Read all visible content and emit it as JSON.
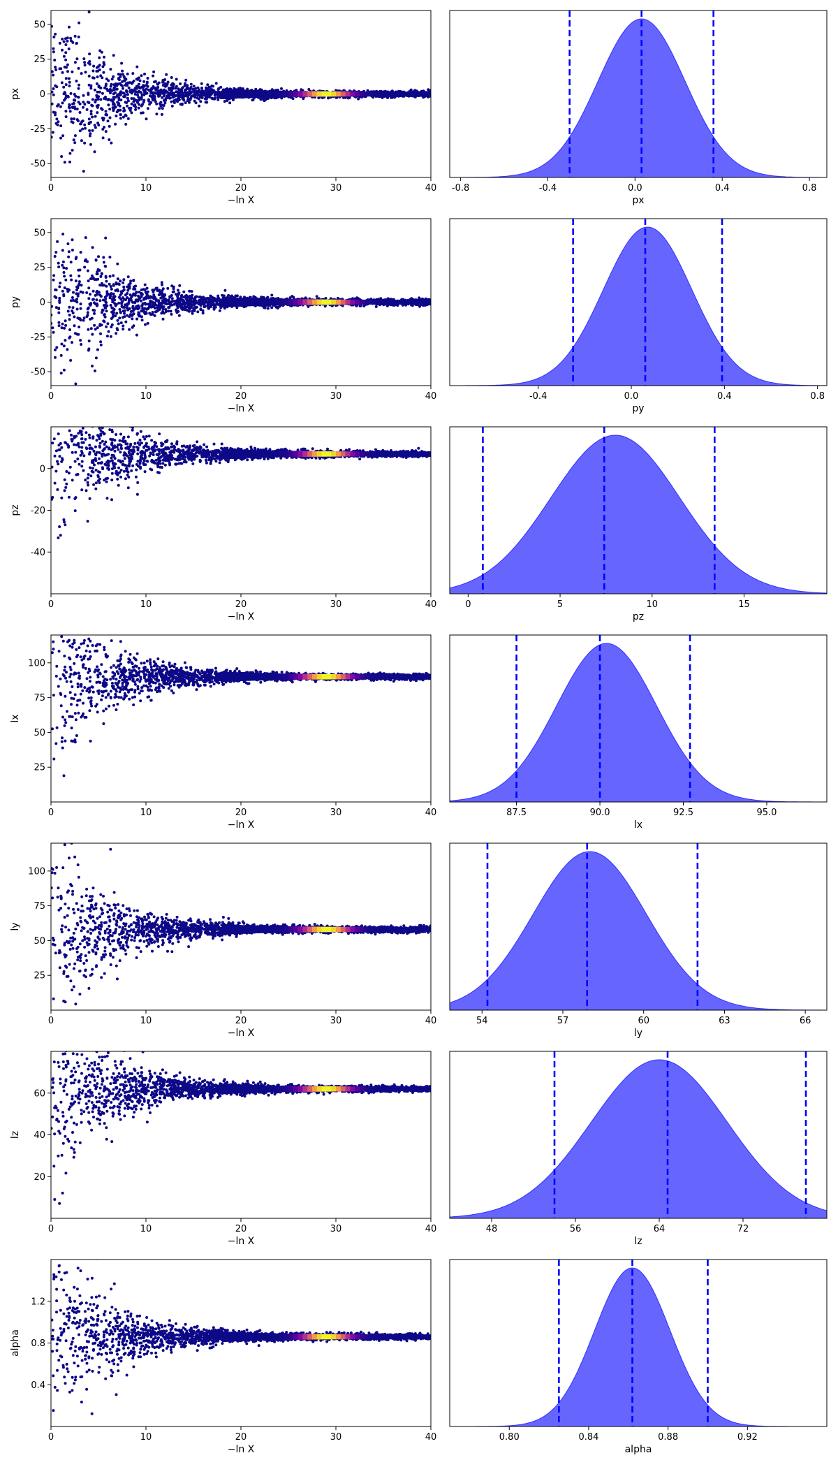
{
  "colors": {
    "scatter_low": "#0d0887",
    "scatter_mid": "#cc4778",
    "scatter_high": "#f0f921",
    "posterior_fill": "#0000ff",
    "posterior_line": "#0000ff",
    "axes": "#000000"
  },
  "chart_data": [
    {
      "type": "scatter",
      "panel": "trace-px",
      "xlabel": "−ln X",
      "ylabel": "px",
      "xlim": [
        0,
        40
      ],
      "ylim": [
        -60,
        60
      ],
      "xticks": [
        "0",
        "10",
        "20",
        "30",
        "40"
      ],
      "yticks": [
        "-50",
        "-25",
        "0",
        "25",
        "50"
      ],
      "converged_value": 0,
      "colormap": "plasma",
      "highlight_x": 29
    },
    {
      "type": "area",
      "panel": "post-px",
      "xlabel": "px",
      "xlim": [
        -0.85,
        0.88
      ],
      "xticks": [
        "-0.8",
        "-0.4",
        "0.0",
        "0.4",
        "0.8"
      ],
      "mode": 0.03,
      "sigma": 0.2,
      "quantiles": [
        -0.3,
        0.03,
        0.36
      ]
    },
    {
      "type": "scatter",
      "panel": "trace-py",
      "xlabel": "−ln X",
      "ylabel": "py",
      "xlim": [
        0,
        40
      ],
      "ylim": [
        -60,
        60
      ],
      "xticks": [
        "0",
        "10",
        "20",
        "30",
        "40"
      ],
      "yticks": [
        "-50",
        "-25",
        "0",
        "25",
        "50"
      ],
      "converged_value": 0,
      "colormap": "plasma",
      "highlight_x": 29
    },
    {
      "type": "area",
      "panel": "post-py",
      "xlabel": "py",
      "xlim": [
        -0.78,
        0.84
      ],
      "xticks": [
        "-0.4",
        "0.0",
        "0.4",
        "0.8"
      ],
      "mode": 0.07,
      "sigma": 0.19,
      "quantiles": [
        -0.25,
        0.06,
        0.39
      ]
    },
    {
      "type": "scatter",
      "panel": "trace-pz",
      "xlabel": "−ln X",
      "ylabel": "pz",
      "xlim": [
        0,
        40
      ],
      "ylim": [
        -60,
        20
      ],
      "xticks": [
        "0",
        "10",
        "20",
        "30",
        "40"
      ],
      "yticks": [
        "-40",
        "-20",
        "0"
      ],
      "converged_value": 7,
      "colormap": "plasma",
      "highlight_x": 29
    },
    {
      "type": "area",
      "panel": "post-pz",
      "xlabel": "pz",
      "xlim": [
        -1,
        19.5
      ],
      "xticks": [
        "0",
        "5",
        "10",
        "15"
      ],
      "mode": 8,
      "sigma": 3.5,
      "quantiles": [
        0.8,
        7.4,
        13.4
      ]
    },
    {
      "type": "scatter",
      "panel": "trace-lx",
      "xlabel": "−ln X",
      "ylabel": "lx",
      "xlim": [
        0,
        40
      ],
      "ylim": [
        0,
        120
      ],
      "xticks": [
        "0",
        "10",
        "20",
        "30",
        "40"
      ],
      "yticks": [
        "25",
        "50",
        "75",
        "100"
      ],
      "converged_value": 90,
      "colormap": "plasma",
      "highlight_x": 29
    },
    {
      "type": "area",
      "panel": "post-lx",
      "xlabel": "lx",
      "xlim": [
        85.5,
        96.8
      ],
      "xticks": [
        "87.5",
        "90.0",
        "92.5",
        "95.0"
      ],
      "mode": 90.2,
      "sigma": 1.5,
      "quantiles": [
        87.5,
        90.0,
        92.7
      ]
    },
    {
      "type": "scatter",
      "panel": "trace-ly",
      "xlabel": "−ln X",
      "ylabel": "ly",
      "xlim": [
        0,
        40
      ],
      "ylim": [
        0,
        120
      ],
      "xticks": [
        "0",
        "10",
        "20",
        "30",
        "40"
      ],
      "yticks": [
        "25",
        "50",
        "75",
        "100"
      ],
      "converged_value": 58,
      "colormap": "plasma",
      "highlight_x": 29
    },
    {
      "type": "area",
      "panel": "post-ly",
      "xlabel": "ly",
      "xlim": [
        52.8,
        66.8
      ],
      "xticks": [
        "54",
        "57",
        "60",
        "63",
        "66"
      ],
      "mode": 58,
      "sigma": 2.1,
      "quantiles": [
        54.2,
        57.9,
        62.0
      ]
    },
    {
      "type": "scatter",
      "panel": "trace-lz",
      "xlabel": "−ln X",
      "ylabel": "lz",
      "xlim": [
        0,
        40
      ],
      "ylim": [
        0,
        80
      ],
      "xticks": [
        "0",
        "10",
        "20",
        "30",
        "40"
      ],
      "yticks": [
        "20",
        "40",
        "60"
      ],
      "converged_value": 62,
      "colormap": "plasma",
      "highlight_x": 29
    },
    {
      "type": "area",
      "panel": "post-lz",
      "xlabel": "lz",
      "xlim": [
        44,
        80
      ],
      "xticks": [
        "48",
        "56",
        "64",
        "72"
      ],
      "mode": 64,
      "sigma": 6.5,
      "quantiles": [
        54,
        64.8,
        78
      ]
    },
    {
      "type": "scatter",
      "panel": "trace-alpha",
      "xlabel": "−ln X",
      "ylabel": "alpha",
      "xlim": [
        0,
        40
      ],
      "ylim": [
        0,
        1.6
      ],
      "xticks": [
        "0",
        "10",
        "20",
        "30",
        "40"
      ],
      "yticks": [
        "0.4",
        "0.8",
        "1.2"
      ],
      "converged_value": 0.86,
      "colormap": "plasma",
      "highlight_x": 29
    },
    {
      "type": "area",
      "panel": "post-alpha",
      "xlabel": "alpha",
      "xlim": [
        0.77,
        0.96
      ],
      "xticks": [
        "0.80",
        "0.84",
        "0.88",
        "0.92"
      ],
      "mode": 0.862,
      "sigma": 0.019,
      "quantiles": [
        0.825,
        0.862,
        0.9
      ]
    }
  ]
}
